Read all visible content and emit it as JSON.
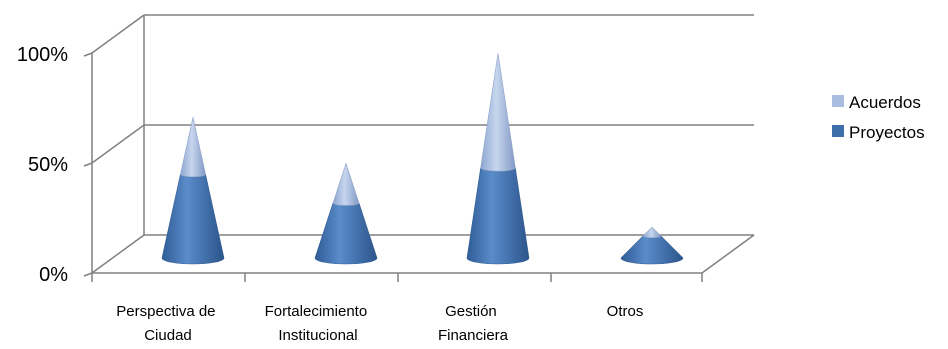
{
  "chart_data": {
    "type": "bar",
    "style": "3d-cone-stacked",
    "categories": [
      [
        "Perspectiva de",
        "Ciudad"
      ],
      [
        "Fortalecimiento",
        "Institucional"
      ],
      [
        "Gestión",
        "Financiera"
      ],
      [
        "Otros"
      ]
    ],
    "series": [
      {
        "name": "Proyectos",
        "values": [
          38,
          25,
          41,
          10
        ]
      },
      {
        "name": "Acuerdos",
        "values": [
          26,
          18,
          52,
          4
        ]
      }
    ],
    "y_ticks": [
      "0%",
      "50%",
      "100%"
    ],
    "ylim": [
      0,
      100
    ],
    "grid": true,
    "legend": "right",
    "colors": {
      "Proyectos": "#3e6fab",
      "Acuerdos": "#a9bde0",
      "grid": "#808080"
    }
  }
}
